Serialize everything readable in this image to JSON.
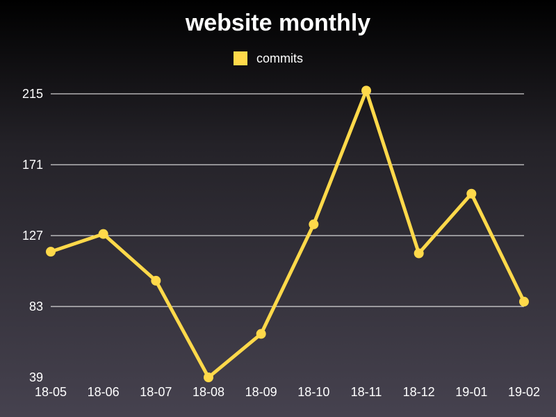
{
  "chart_data": {
    "type": "line",
    "title": "website monthly",
    "xlabel": "",
    "ylabel": "",
    "categories": [
      "18-05",
      "18-06",
      "18-07",
      "18-08",
      "18-09",
      "18-10",
      "18-11",
      "18-12",
      "19-01",
      "19-02"
    ],
    "series": [
      {
        "name": "commits",
        "values": [
          117,
          128,
          99,
          39,
          66,
          134,
          217,
          116,
          153,
          86
        ],
        "color": "#ffd94a"
      }
    ],
    "yticks": [
      39,
      83,
      127,
      171,
      215
    ],
    "ylim": [
      39,
      215
    ],
    "grid": true,
    "legend_position": "top-center"
  }
}
